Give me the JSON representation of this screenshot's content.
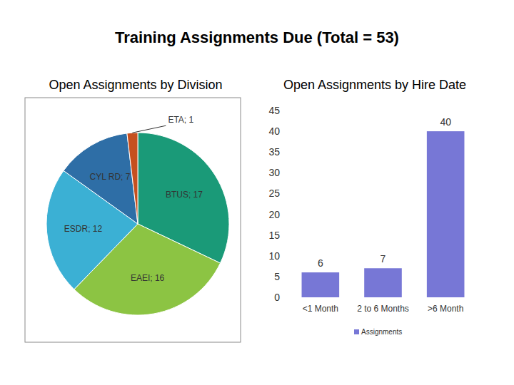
{
  "title": "Training Assignments Due (Total = 53)",
  "chart_data": [
    {
      "type": "pie",
      "title": "Open Assignments by Division",
      "categories": [
        "BTUS",
        "EAEI",
        "ESDR",
        "CYL RD",
        "ETA"
      ],
      "values": [
        17,
        16,
        12,
        7,
        1
      ],
      "value_labels": [
        "BTUS; 17",
        "EAEI; 16",
        "ESDR; 12",
        "CYL RD; 7",
        "ETA; 1"
      ],
      "colors": [
        "#1a9a78",
        "#8cc443",
        "#3bb0d4",
        "#2e6ea6",
        "#c6501f"
      ],
      "data_labels": true
    },
    {
      "type": "bar",
      "title": "Open Assignments by Hire Date",
      "categories": [
        "<1 Month",
        "2 to 6 Months",
        ">6 Month"
      ],
      "series": [
        {
          "name": "Assignments",
          "color": "#7777d6",
          "values": [
            6,
            7,
            40
          ]
        }
      ],
      "ylim": [
        0,
        45
      ],
      "yticks": [
        0,
        5,
        10,
        15,
        20,
        25,
        30,
        35,
        40,
        45
      ],
      "grid": false,
      "legend": "bottom",
      "data_labels": true
    }
  ]
}
